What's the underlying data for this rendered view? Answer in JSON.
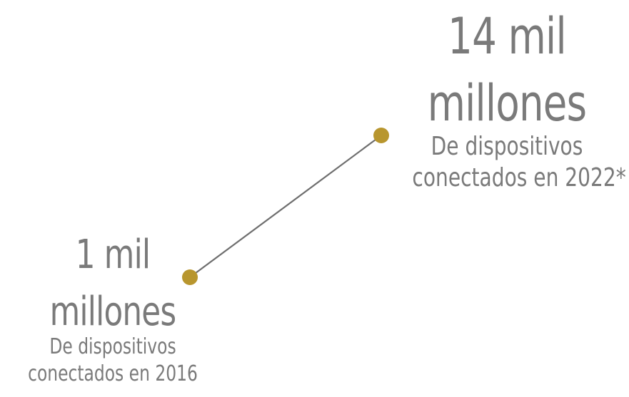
{
  "accent_color": "#b8962e",
  "line_color": "#6e6e6e",
  "text_color": "#7a7a7a",
  "points": [
    {
      "year": "2016",
      "value_line1": "1 mil",
      "value_line2": "millones",
      "caption_line1": "De dispositivos",
      "caption_line2": "conectados en 2016"
    },
    {
      "year": "2022",
      "value_line1": "14 mil",
      "value_line2": "millones",
      "caption_line1": "De dispositivos",
      "caption_line2": "conectados en 2022*"
    }
  ]
}
